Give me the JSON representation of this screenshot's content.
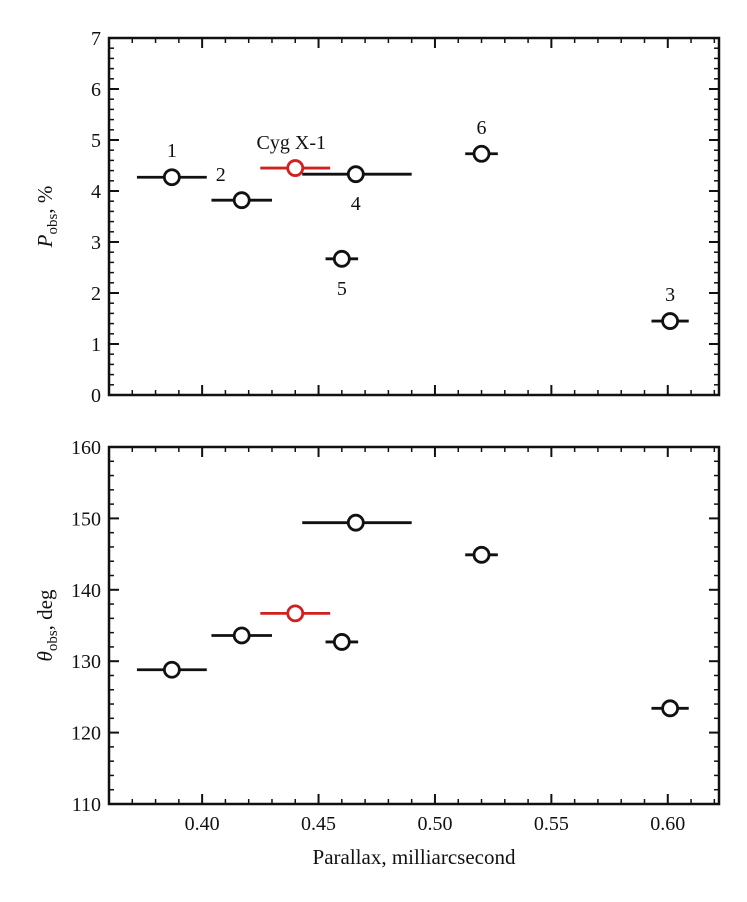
{
  "chart_data": [
    {
      "type": "scatter",
      "panel": "top",
      "xlabel": "",
      "ylabel": {
        "main": "P",
        "sub": "obs",
        "suffix": ", %"
      },
      "xlim": [
        0.36,
        0.622
      ],
      "ylim": [
        0,
        7
      ],
      "yticks": [
        0,
        1,
        2,
        3,
        4,
        5,
        6,
        7
      ],
      "xticks": [
        0.4,
        0.45,
        0.5,
        0.55,
        0.6
      ],
      "show_xtick_labels": false,
      "grid": false,
      "points": [
        {
          "label": "1",
          "x": 0.387,
          "xerr": [
            0.372,
            0.402
          ],
          "y": 4.27,
          "color": "#111111",
          "label_pos": "above"
        },
        {
          "label": "2",
          "x": 0.417,
          "xerr": [
            0.404,
            0.43
          ],
          "y": 3.82,
          "color": "#111111",
          "label_pos": "above-left"
        },
        {
          "label": "Cyg X-1",
          "x": 0.44,
          "xerr": [
            0.425,
            0.455
          ],
          "y": 4.45,
          "color": "#d02020",
          "label_pos": "above-left"
        },
        {
          "label": "4",
          "x": 0.466,
          "xerr": [
            0.443,
            0.49
          ],
          "y": 4.33,
          "color": "#111111",
          "label_pos": "below"
        },
        {
          "label": "5",
          "x": 0.46,
          "xerr": [
            0.453,
            0.467
          ],
          "y": 2.67,
          "color": "#111111",
          "label_pos": "below"
        },
        {
          "label": "6",
          "x": 0.52,
          "xerr": [
            0.513,
            0.527
          ],
          "y": 4.73,
          "color": "#111111",
          "label_pos": "above"
        },
        {
          "label": "3",
          "x": 0.601,
          "xerr": [
            0.593,
            0.609
          ],
          "y": 1.45,
          "color": "#111111",
          "label_pos": "above"
        }
      ]
    },
    {
      "type": "scatter",
      "panel": "bottom",
      "xlabel": "Parallax, milliarcsecond",
      "ylabel": {
        "main": "θ",
        "sub": "obs",
        "suffix": ", deg"
      },
      "xlim": [
        0.36,
        0.622
      ],
      "ylim": [
        110,
        160
      ],
      "yticks": [
        110,
        120,
        130,
        140,
        150,
        160
      ],
      "xticks": [
        0.4,
        0.45,
        0.5,
        0.55,
        0.6
      ],
      "xtick_labels": [
        "0.40",
        "0.45",
        "0.50",
        "0.55",
        "0.60"
      ],
      "show_xtick_labels": true,
      "grid": false,
      "points": [
        {
          "x": 0.387,
          "xerr": [
            0.372,
            0.402
          ],
          "y": 128.8,
          "color": "#111111"
        },
        {
          "x": 0.417,
          "xerr": [
            0.404,
            0.43
          ],
          "y": 133.6,
          "color": "#111111"
        },
        {
          "x": 0.44,
          "xerr": [
            0.425,
            0.455
          ],
          "y": 136.7,
          "color": "#d02020"
        },
        {
          "x": 0.466,
          "xerr": [
            0.443,
            0.49
          ],
          "y": 149.4,
          "color": "#111111"
        },
        {
          "x": 0.46,
          "xerr": [
            0.453,
            0.467
          ],
          "y": 132.7,
          "color": "#111111"
        },
        {
          "x": 0.52,
          "xerr": [
            0.513,
            0.527
          ],
          "y": 144.9,
          "color": "#111111"
        },
        {
          "x": 0.601,
          "xerr": [
            0.593,
            0.609
          ],
          "y": 123.4,
          "color": "#111111"
        }
      ]
    }
  ]
}
